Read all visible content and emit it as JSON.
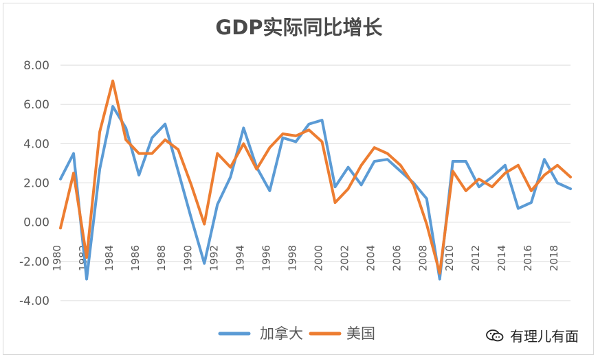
{
  "chart_data": {
    "type": "line",
    "title": "GDP实际同比增长",
    "x": [
      1980,
      1981,
      1982,
      1983,
      1984,
      1985,
      1986,
      1987,
      1988,
      1989,
      1990,
      1991,
      1992,
      1993,
      1994,
      1995,
      1996,
      1997,
      1998,
      1999,
      2000,
      2001,
      2002,
      2003,
      2004,
      2005,
      2006,
      2007,
      2008,
      2009,
      2010,
      2011,
      2012,
      2013,
      2014,
      2015,
      2016,
      2017,
      2018,
      2019
    ],
    "tick_labels": [
      "1980",
      "1982",
      "1984",
      "1986",
      "1988",
      "1990",
      "1992",
      "1994",
      "1996",
      "1998",
      "2000",
      "2002",
      "2004",
      "2006",
      "2008",
      "2010",
      "2012",
      "2014",
      "2016",
      "2018"
    ],
    "y_ticks": [
      "8.00",
      "6.00",
      "4.00",
      "2.00",
      "0.00",
      "-2.00",
      "-4.00"
    ],
    "ylim": [
      -4,
      8
    ],
    "grid": true,
    "legend": "bottom",
    "series": [
      {
        "name": "加拿大",
        "color": "#5b9bd5",
        "values": [
          2.2,
          3.5,
          -2.9,
          2.7,
          5.9,
          4.8,
          2.4,
          4.3,
          5.0,
          2.6,
          0.2,
          -2.1,
          0.9,
          2.3,
          4.8,
          2.8,
          1.6,
          4.3,
          4.1,
          5.0,
          5.2,
          1.8,
          2.8,
          1.9,
          3.1,
          3.2,
          2.6,
          2.0,
          1.2,
          -2.9,
          3.1,
          3.1,
          1.8,
          2.3,
          2.9,
          0.7,
          1.0,
          3.2,
          2.0,
          1.7
        ]
      },
      {
        "name": "美国",
        "color": "#ed7d31",
        "values": [
          -0.3,
          2.5,
          -1.8,
          4.6,
          7.2,
          4.2,
          3.5,
          3.5,
          4.2,
          3.7,
          1.9,
          -0.1,
          3.5,
          2.8,
          4.0,
          2.7,
          3.8,
          4.5,
          4.4,
          4.7,
          4.1,
          1.0,
          1.7,
          2.9,
          3.8,
          3.5,
          2.9,
          1.9,
          -0.1,
          -2.6,
          2.6,
          1.6,
          2.2,
          1.8,
          2.5,
          2.9,
          1.6,
          2.4,
          2.9,
          2.3
        ]
      }
    ]
  },
  "watermark": {
    "text": "有理儿有面",
    "icon": "wechat-icon"
  }
}
